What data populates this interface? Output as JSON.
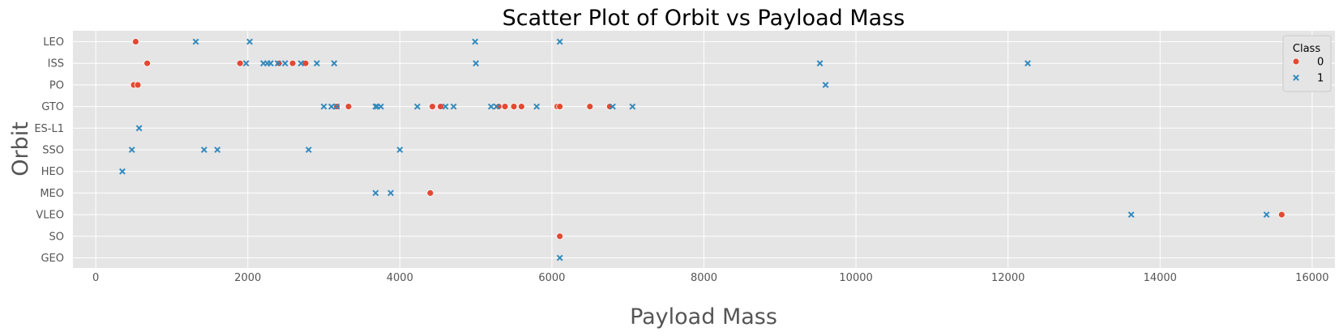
{
  "chart_data": {
    "type": "scatter",
    "title": "Scatter Plot of Orbit vs Payload Mass",
    "xlabel": "Payload Mass",
    "ylabel": "Orbit",
    "xlim": [
      -300,
      16300
    ],
    "xticks": [
      0,
      2000,
      4000,
      6000,
      8000,
      10000,
      12000,
      14000,
      16000
    ],
    "categories": [
      "LEO",
      "ISS",
      "PO",
      "GTO",
      "ES-L1",
      "SSO",
      "HEO",
      "MEO",
      "VLEO",
      "SO",
      "GEO"
    ],
    "grid": true,
    "legend": {
      "title": "Class",
      "placement": "top-right"
    },
    "series": [
      {
        "name": "0",
        "marker": "circle",
        "color": "#e24a33",
        "points": [
          [
            525,
            "LEO"
          ],
          [
            677,
            "ISS"
          ],
          [
            1898,
            "ISS"
          ],
          [
            2410,
            "ISS"
          ],
          [
            2590,
            "ISS"
          ],
          [
            2760,
            "ISS"
          ],
          [
            500,
            "PO"
          ],
          [
            553,
            "PO"
          ],
          [
            3170,
            "GTO"
          ],
          [
            3325,
            "GTO"
          ],
          [
            4428,
            "GTO"
          ],
          [
            4535,
            "GTO"
          ],
          [
            5300,
            "GTO"
          ],
          [
            5383,
            "GTO"
          ],
          [
            5500,
            "GTO"
          ],
          [
            5600,
            "GTO"
          ],
          [
            6070,
            "GTO"
          ],
          [
            6104,
            "GTO"
          ],
          [
            6500,
            "GTO"
          ],
          [
            6761,
            "GTO"
          ],
          [
            4400,
            "MEO"
          ],
          [
            15600,
            "VLEO"
          ],
          [
            6104,
            "SO"
          ]
        ]
      },
      {
        "name": "1",
        "marker": "x",
        "color": "#348abd",
        "points": [
          [
            1316,
            "LEO"
          ],
          [
            2025,
            "LEO"
          ],
          [
            4990,
            "LEO"
          ],
          [
            6104,
            "LEO"
          ],
          [
            1977,
            "ISS"
          ],
          [
            2205,
            "ISS"
          ],
          [
            2257,
            "ISS"
          ],
          [
            2300,
            "ISS"
          ],
          [
            2395,
            "ISS"
          ],
          [
            2490,
            "ISS"
          ],
          [
            2700,
            "ISS"
          ],
          [
            2908,
            "ISS"
          ],
          [
            3136,
            "ISS"
          ],
          [
            5000,
            "ISS"
          ],
          [
            9525,
            "ISS"
          ],
          [
            12259,
            "ISS"
          ],
          [
            9600,
            "PO"
          ],
          [
            3000,
            "GTO"
          ],
          [
            3100,
            "GTO"
          ],
          [
            3170,
            "GTO"
          ],
          [
            3681,
            "GTO"
          ],
          [
            3700,
            "GTO"
          ],
          [
            3750,
            "GTO"
          ],
          [
            4230,
            "GTO"
          ],
          [
            4600,
            "GTO"
          ],
          [
            4707,
            "GTO"
          ],
          [
            5200,
            "GTO"
          ],
          [
            5271,
            "GTO"
          ],
          [
            5800,
            "GTO"
          ],
          [
            6800,
            "GTO"
          ],
          [
            7060,
            "GTO"
          ],
          [
            570,
            "ES-L1"
          ],
          [
            475,
            "SSO"
          ],
          [
            1425,
            "SSO"
          ],
          [
            1600,
            "SSO"
          ],
          [
            2800,
            "SSO"
          ],
          [
            4000,
            "SSO"
          ],
          [
            350,
            "HEO"
          ],
          [
            3681,
            "MEO"
          ],
          [
            3880,
            "MEO"
          ],
          [
            13620,
            "VLEO"
          ],
          [
            15400,
            "VLEO"
          ],
          [
            6104,
            "GEO"
          ]
        ]
      }
    ]
  }
}
